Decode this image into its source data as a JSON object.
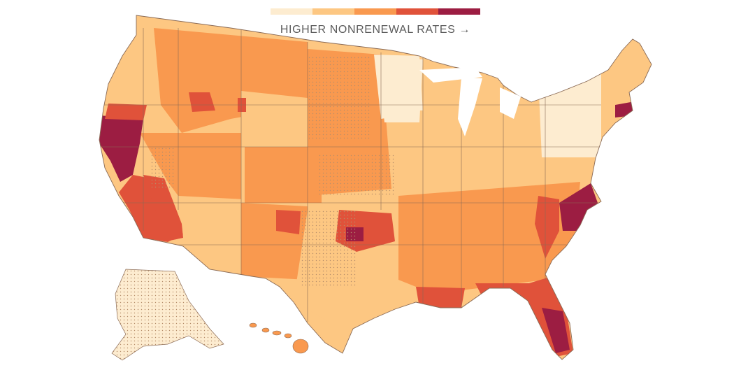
{
  "legend": {
    "label": "HIGHER NONRENEWAL RATES",
    "arrow": "→",
    "bins": [
      {
        "level": 1,
        "color": "#fdecd0"
      },
      {
        "level": 2,
        "color": "#fdc782"
      },
      {
        "level": 3,
        "color": "#f9994f"
      },
      {
        "level": 4,
        "color": "#e0523a"
      },
      {
        "level": 5,
        "color": "#9c1d42"
      }
    ]
  },
  "map": {
    "subject": "United States counties shaded by insurance nonrenewal rate",
    "hatched_note": "stippled pattern marks areas with limited data",
    "regions": [
      {
        "id": "california-north",
        "level": 5
      },
      {
        "id": "california-central-valley",
        "level": 4
      },
      {
        "id": "southern-california",
        "level": 4
      },
      {
        "id": "oregon-coast",
        "level": 4
      },
      {
        "id": "florida",
        "level": 5
      },
      {
        "id": "carolinas-coast",
        "level": 5
      },
      {
        "id": "gulf-coast-louisiana",
        "level": 4
      },
      {
        "id": "oklahoma",
        "level": 4
      },
      {
        "id": "upper-midwest",
        "level": 1
      },
      {
        "id": "new-york-pennsylvania",
        "level": 1
      },
      {
        "id": "massachusetts",
        "level": 5
      },
      {
        "id": "alaska",
        "level": 1
      },
      {
        "id": "hawaii",
        "level": 3
      }
    ],
    "colors": {
      "border": "#8a6a55",
      "hatch": "#b58d6a",
      "background": "#ffffff"
    }
  }
}
